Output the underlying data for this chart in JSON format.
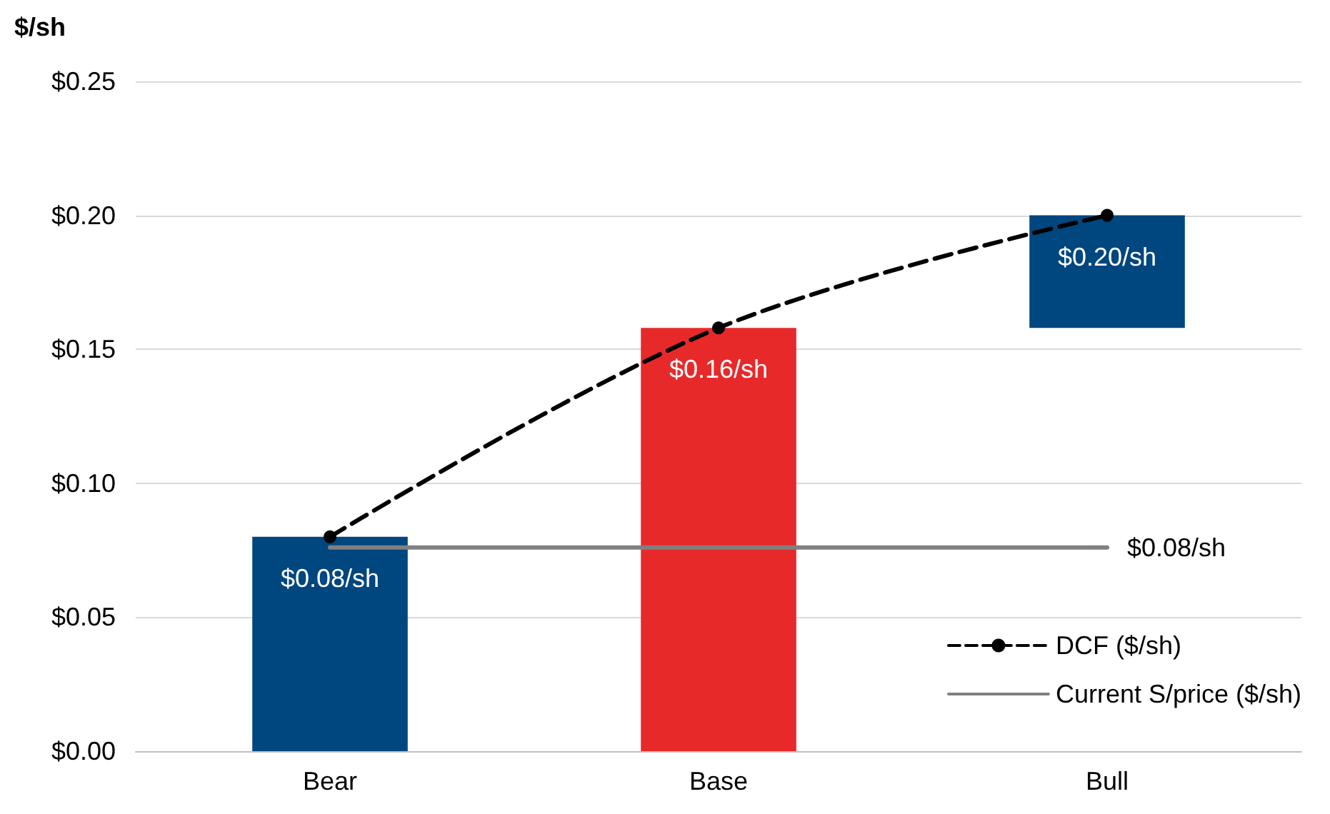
{
  "chart_data": {
    "type": "bar",
    "ylabel": "$/sh",
    "categories": [
      "Bear",
      "Base",
      "Bull"
    ],
    "series": [
      {
        "type": "bar",
        "colors": [
          "#00467f",
          "#e8292a",
          "#00467f"
        ],
        "values": [
          0.08,
          0.158,
          0.042
        ],
        "base": [
          0,
          0,
          0.158
        ],
        "value_labels": [
          "$0.08/sh",
          "$0.16/sh",
          "$0.20/sh"
        ]
      },
      {
        "type": "line",
        "name": "DCF ($/sh)",
        "color": "#000000",
        "values": [
          0.08,
          0.158,
          0.2
        ],
        "line_style": "dashed",
        "marker": "circle"
      },
      {
        "type": "line",
        "name": "Current S/price ($/sh)",
        "color": "#808080",
        "values": [
          0.076,
          0.076,
          0.076
        ],
        "line_style": "solid",
        "marker": "none",
        "value_labels": [
          null,
          null,
          "$0.08/sh"
        ]
      }
    ],
    "ylim": [
      0,
      0.25
    ],
    "yticks": [
      {
        "value": 0,
        "label": "$0.00"
      },
      {
        "value": 0.05,
        "label": "$0.05"
      },
      {
        "value": 0.1,
        "label": "$0.10"
      },
      {
        "value": 0.15,
        "label": "$0.15"
      },
      {
        "value": 0.2,
        "label": "$0.20"
      },
      {
        "value": 0.25,
        "label": "$0.25"
      }
    ],
    "grid": "y",
    "legend": "bottom right"
  }
}
